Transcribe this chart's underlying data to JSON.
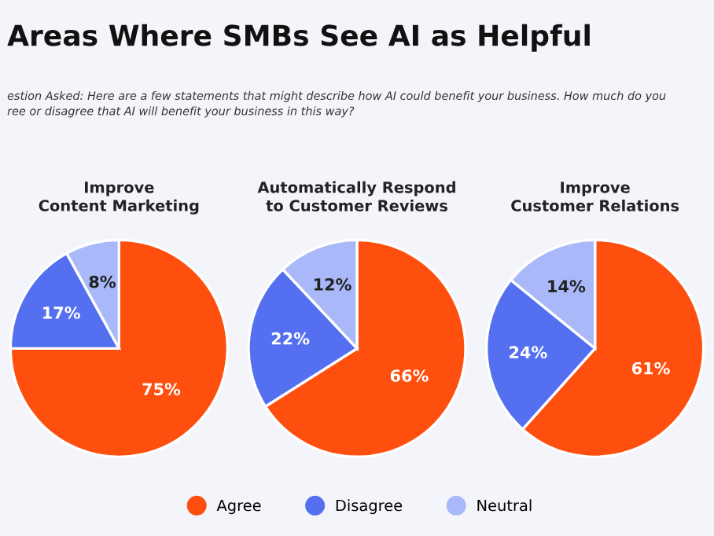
{
  "chart_data": [
    {
      "type": "pie",
      "title": "Areas Where SMBs See AI as Helpful",
      "subtitle": "estion Asked: Here are a few statements that might describe how AI could benefit your business. How much do you\nree or disagree that AI will benefit your business in this way?",
      "xlabel": "Improve\nContent Marketing",
      "categories": [
        null,
        null,
        null
      ],
      "values": [
        75,
        17,
        8
      ],
      "value_labels": [
        "75%",
        "17%",
        "8%"
      ],
      "colors": [
        "#ff4f0f",
        "#5470f0",
        "#a9b8f8"
      ]
    },
    {
      "type": "pie",
      "xlabel": "Automatically Respond\nto Customer Reviews",
      "categories": [
        "Agree",
        "Disagree",
        "Neutral"
      ],
      "values": [
        66,
        22,
        12
      ],
      "value_labels": [
        "66%",
        "22%",
        "12%"
      ],
      "colors": [
        "#ff4f0f",
        "#5470f0",
        "#a9b8f8"
      ],
      "legend": "bottom"
    },
    {
      "type": "pie",
      "xlabel": "Improve\nCustomer Relations",
      "categories": [
        null,
        null,
        null
      ],
      "values": [
        61,
        24,
        14
      ],
      "value_labels": [
        "61%",
        "24%",
        "14%"
      ],
      "colors": [
        "#ff4f0f",
        "#5470f0",
        "#a9b8f8"
      ]
    }
  ]
}
